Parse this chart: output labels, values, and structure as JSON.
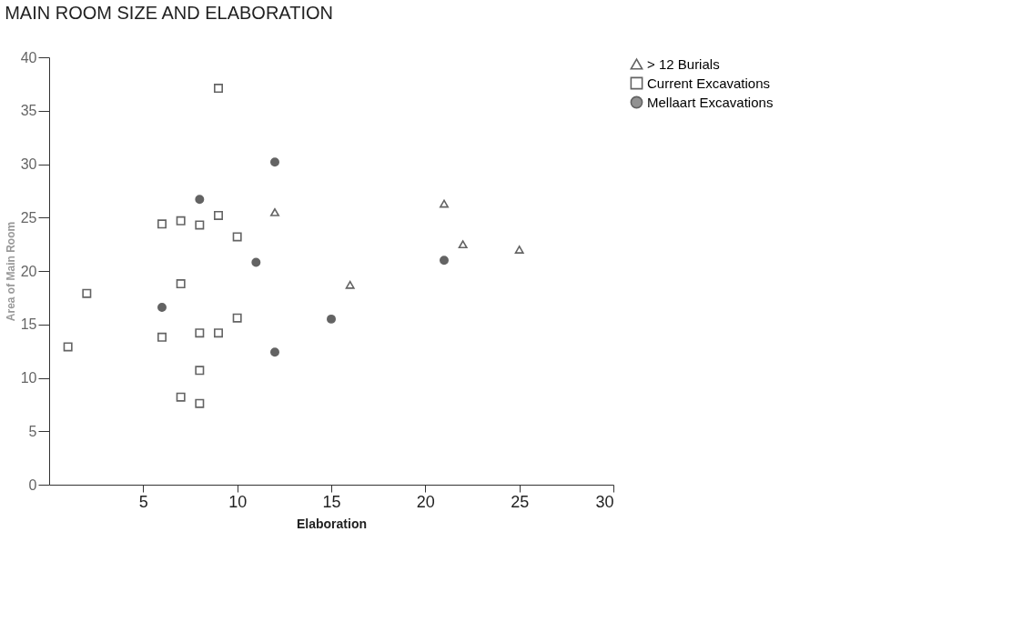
{
  "chart_data": {
    "type": "scatter",
    "title": "MAIN ROOM SIZE AND ELABORATION",
    "xlabel": "Elaboration",
    "ylabel": "Area of Main Room",
    "xlim": [
      0,
      30
    ],
    "xticks": [
      5,
      10,
      15,
      20,
      25,
      30
    ],
    "ylim": [
      0,
      40
    ],
    "yticks": [
      0,
      5,
      10,
      15,
      20,
      25,
      30,
      35,
      40
    ],
    "grid": false,
    "legend": "top right",
    "series": [
      {
        "name": "> 12 Burials",
        "color": "#222222",
        "marker": "triangle",
        "x": [
          12,
          16,
          21,
          22,
          25
        ],
        "values": [
          25.5,
          18.7,
          26.3,
          22.5,
          22.0
        ]
      },
      {
        "name": "Current Excavations",
        "color": "#222222",
        "marker": "square",
        "x": [
          9,
          6,
          7,
          8,
          9,
          10,
          7,
          2,
          1,
          6,
          8,
          9,
          10,
          8,
          7,
          8
        ],
        "values": [
          37.1,
          24.4,
          24.7,
          24.3,
          25.2,
          23.2,
          18.8,
          17.9,
          12.9,
          13.8,
          14.2,
          14.2,
          15.6,
          10.7,
          8.2,
          7.6
        ]
      },
      {
        "name": "Mellaart Excavations",
        "color": "#222222",
        "marker": "circle",
        "x": [
          8,
          12,
          11,
          6,
          15,
          12,
          21
        ],
        "values": [
          26.7,
          30.2,
          20.8,
          16.6,
          15.5,
          12.4,
          21.0
        ]
      }
    ]
  }
}
